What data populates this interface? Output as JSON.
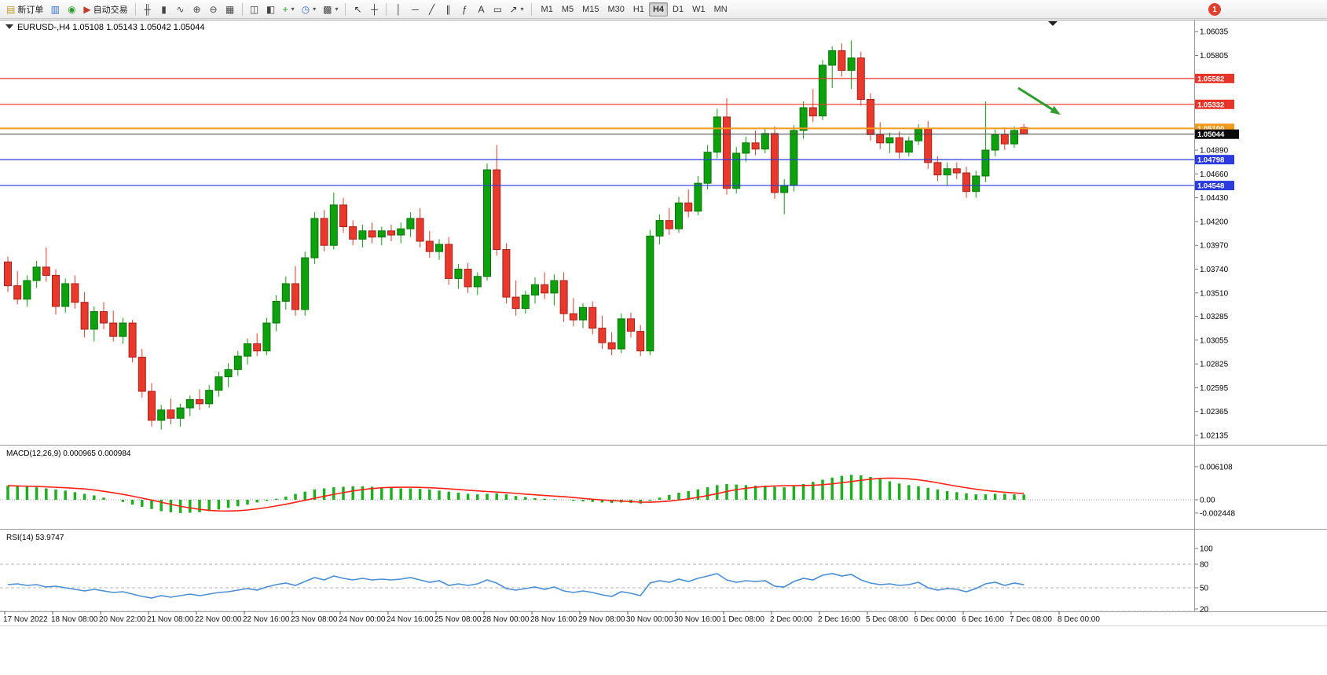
{
  "toolbar": {
    "items": [
      {
        "name": "new-order-button",
        "icon": "new-order-icon",
        "glyph": "▤",
        "color": "#c79b23",
        "label": "新订单"
      },
      {
        "name": "charts-button",
        "icon": "chart-window-icon",
        "glyph": "▥",
        "color": "#2f6fd0"
      },
      {
        "name": "news-button",
        "icon": "headset-icon",
        "glyph": "◉",
        "color": "#2f9e2f"
      },
      {
        "name": "autotrading-button",
        "icon": "autotrading-icon",
        "glyph": "▶",
        "color": "#c23a2e",
        "label": "自动交易"
      },
      {
        "sep": true
      },
      {
        "name": "bar-chart-type-button",
        "icon": "bar-chart-icon",
        "glyph": "╫",
        "color": "#444"
      },
      {
        "name": "candle-chart-type-button",
        "icon": "candlestick-icon",
        "glyph": "▮",
        "color": "#444"
      },
      {
        "name": "line-chart-type-button",
        "icon": "line-chart-icon",
        "glyph": "∿",
        "color": "#444"
      },
      {
        "name": "zoom-in-button",
        "icon": "zoom-in-icon",
        "glyph": "⊕",
        "color": "#444"
      },
      {
        "name": "zoom-out-button",
        "icon": "zoom-out-icon",
        "glyph": "⊖",
        "color": "#444"
      },
      {
        "name": "tile-windows-button",
        "icon": "tile-windows-icon",
        "glyph": "▦",
        "color": "#444"
      },
      {
        "sep": true
      },
      {
        "name": "data-window-button",
        "icon": "data-window-icon",
        "glyph": "◫",
        "color": "#444"
      },
      {
        "name": "navigator-button",
        "icon": "navigator-icon",
        "glyph": "◧",
        "color": "#444"
      },
      {
        "name": "indicators-button",
        "icon": "add-indicator-icon",
        "glyph": "+",
        "color": "#1f9e1f",
        "caret": true
      },
      {
        "name": "periods-button",
        "icon": "clock-icon",
        "glyph": "◷",
        "color": "#2f6fd0",
        "caret": true
      },
      {
        "name": "templates-button",
        "icon": "template-icon",
        "glyph": "▩",
        "color": "#444",
        "caret": true
      },
      {
        "sep": true
      },
      {
        "name": "cursor-button",
        "icon": "cursor-icon",
        "glyph": "↖",
        "color": "#333"
      },
      {
        "name": "crosshair-button",
        "icon": "crosshair-icon",
        "glyph": "┼",
        "color": "#333"
      },
      {
        "sep": true
      },
      {
        "name": "vertical-line-button",
        "icon": "vertical-line-icon",
        "glyph": "│",
        "color": "#333"
      },
      {
        "name": "horizontal-line-button",
        "icon": "horizontal-line-icon",
        "glyph": "─",
        "color": "#333"
      },
      {
        "name": "trendline-button",
        "icon": "trendline-icon",
        "glyph": "╱",
        "color": "#333"
      },
      {
        "name": "channel-button",
        "icon": "channel-icon",
        "glyph": "∥",
        "color": "#333"
      },
      {
        "name": "fibonacci-button",
        "icon": "fibonacci-icon",
        "glyph": "ƒ",
        "color": "#333"
      },
      {
        "name": "text-button",
        "icon": "text-icon",
        "glyph": "A",
        "color": "#333"
      },
      {
        "name": "label-button",
        "icon": "label-icon",
        "glyph": "▭",
        "color": "#333"
      },
      {
        "name": "arrows-button",
        "icon": "arrow-tool-icon",
        "glyph": "↗",
        "color": "#333",
        "caret": true
      },
      {
        "sep": true
      }
    ],
    "timeframes": [
      "M1",
      "M5",
      "M15",
      "M30",
      "H1",
      "H4",
      "D1",
      "W1",
      "MN"
    ],
    "active_timeframe": "H4",
    "notification_count": "1"
  },
  "chart": {
    "symbol_header": "EURUSD-,H4  1.05108 1.05143 1.05042 1.05044",
    "macd_header": "MACD(12,26,9) 0.000965 0.000984",
    "rsi_header": "RSI(14) 53.9747"
  },
  "chart_data": {
    "type": "candlestick",
    "symbol": "EURUSD-",
    "timeframe": "H4",
    "current_bar": {
      "open": 1.05108,
      "high": 1.05143,
      "low": 1.05042,
      "close": 1.05044
    },
    "price_axis_range": [
      1.02135,
      1.06035
    ],
    "style": {
      "up_color": "#0da10d",
      "up_border": "#077507",
      "down_color": "#e8392c",
      "down_border": "#a8221a",
      "macd_color": "#1fae1f",
      "signal_color": "#ff2015",
      "rsi_color": "#4a8fd4"
    },
    "candles": [
      [
        1.0381,
        1.0386,
        1.0352,
        1.0358
      ],
      [
        1.0358,
        1.0372,
        1.034,
        1.0345
      ],
      [
        1.0345,
        1.0368,
        1.0338,
        1.0363
      ],
      [
        1.0363,
        1.0382,
        1.0356,
        1.0376
      ],
      [
        1.0376,
        1.0395,
        1.0362,
        1.0368
      ],
      [
        1.0368,
        1.0374,
        1.033,
        1.0338
      ],
      [
        1.0338,
        1.0365,
        1.0332,
        1.036
      ],
      [
        1.036,
        1.0368,
        1.0336,
        1.0342
      ],
      [
        1.0342,
        1.0352,
        1.0308,
        1.0316
      ],
      [
        1.0316,
        1.0338,
        1.0304,
        1.0333
      ],
      [
        1.0333,
        1.0342,
        1.0316,
        1.0322
      ],
      [
        1.0322,
        1.0334,
        1.0304,
        1.0309
      ],
      [
        1.0309,
        1.0327,
        1.0302,
        1.0322
      ],
      [
        1.0322,
        1.0325,
        1.0284,
        1.0289
      ],
      [
        1.0289,
        1.0297,
        1.025,
        1.0256
      ],
      [
        1.0256,
        1.0264,
        1.0222,
        1.0228
      ],
      [
        1.0228,
        1.0243,
        1.0219,
        1.0238
      ],
      [
        1.0238,
        1.0249,
        1.0224,
        1.023
      ],
      [
        1.023,
        1.0244,
        1.0222,
        1.024
      ],
      [
        1.024,
        1.0252,
        1.0232,
        1.0248
      ],
      [
        1.0248,
        1.0258,
        1.0238,
        1.0244
      ],
      [
        1.0244,
        1.0262,
        1.024,
        1.0257
      ],
      [
        1.0257,
        1.0275,
        1.0251,
        1.027
      ],
      [
        1.027,
        1.0283,
        1.026,
        1.0277
      ],
      [
        1.0277,
        1.0295,
        1.0271,
        1.029
      ],
      [
        1.029,
        1.0307,
        1.0282,
        1.0302
      ],
      [
        1.0302,
        1.0312,
        1.029,
        1.0295
      ],
      [
        1.0295,
        1.0327,
        1.0291,
        1.0322
      ],
      [
        1.0322,
        1.0349,
        1.0314,
        1.0343
      ],
      [
        1.0343,
        1.0367,
        1.0335,
        1.036
      ],
      [
        1.036,
        1.0377,
        1.0329,
        1.0335
      ],
      [
        1.0335,
        1.0391,
        1.0329,
        1.0385
      ],
      [
        1.0385,
        1.0429,
        1.0379,
        1.0423
      ],
      [
        1.0423,
        1.0431,
        1.0391,
        1.0397
      ],
      [
        1.0397,
        1.0448,
        1.0393,
        1.0436
      ],
      [
        1.0436,
        1.0443,
        1.0409,
        1.0415
      ],
      [
        1.0415,
        1.0421,
        1.0397,
        1.0403
      ],
      [
        1.0403,
        1.0417,
        1.0395,
        1.0411
      ],
      [
        1.0411,
        1.0419,
        1.0399,
        1.0405
      ],
      [
        1.0405,
        1.0415,
        1.0397,
        1.0411
      ],
      [
        1.0411,
        1.0417,
        1.0401,
        1.0407
      ],
      [
        1.0407,
        1.0419,
        1.0399,
        1.0413
      ],
      [
        1.0413,
        1.0429,
        1.0405,
        1.0423
      ],
      [
        1.0423,
        1.0433,
        1.0395,
        1.0401
      ],
      [
        1.0401,
        1.0411,
        1.0385,
        1.0391
      ],
      [
        1.0391,
        1.0403,
        1.0383,
        1.0398
      ],
      [
        1.0398,
        1.0405,
        1.0359,
        1.0365
      ],
      [
        1.0365,
        1.0379,
        1.0355,
        1.0374
      ],
      [
        1.0374,
        1.038,
        1.0351,
        1.0357
      ],
      [
        1.0357,
        1.0371,
        1.0349,
        1.0367
      ],
      [
        1.0367,
        1.0476,
        1.0363,
        1.047
      ],
      [
        1.047,
        1.0494,
        1.0387,
        1.0393
      ],
      [
        1.0393,
        1.0399,
        1.0341,
        1.0347
      ],
      [
        1.0347,
        1.0363,
        1.0329,
        1.0336
      ],
      [
        1.0336,
        1.0353,
        1.0331,
        1.0349
      ],
      [
        1.0349,
        1.0366,
        1.0341,
        1.0359
      ],
      [
        1.0359,
        1.0371,
        1.0345,
        1.0351
      ],
      [
        1.0351,
        1.0369,
        1.0339,
        1.0363
      ],
      [
        1.0363,
        1.0371,
        1.0323,
        1.0331
      ],
      [
        1.0331,
        1.0346,
        1.0319,
        1.0325
      ],
      [
        1.0325,
        1.0341,
        1.0317,
        1.0337
      ],
      [
        1.0337,
        1.0343,
        1.0311,
        1.0317
      ],
      [
        1.0317,
        1.0329,
        1.0297,
        1.0303
      ],
      [
        1.0303,
        1.0313,
        1.0291,
        1.0297
      ],
      [
        1.0297,
        1.0331,
        1.0293,
        1.0326
      ],
      [
        1.0326,
        1.0332,
        1.0308,
        1.0314
      ],
      [
        1.0314,
        1.032,
        1.029,
        1.0295
      ],
      [
        1.0295,
        1.0412,
        1.0291,
        1.0406
      ],
      [
        1.0406,
        1.0427,
        1.0398,
        1.0421
      ],
      [
        1.0421,
        1.0433,
        1.0407,
        1.0413
      ],
      [
        1.0413,
        1.0444,
        1.0409,
        1.0438
      ],
      [
        1.0438,
        1.0451,
        1.0424,
        1.043
      ],
      [
        1.043,
        1.0464,
        1.0426,
        1.0457
      ],
      [
        1.0457,
        1.0494,
        1.0451,
        1.0487
      ],
      [
        1.0487,
        1.0529,
        1.0481,
        1.0521
      ],
      [
        1.0521,
        1.0539,
        1.0446,
        1.0452
      ],
      [
        1.0452,
        1.0492,
        1.0447,
        1.0486
      ],
      [
        1.0486,
        1.0502,
        1.0478,
        1.0496
      ],
      [
        1.0496,
        1.0508,
        1.0484,
        1.049
      ],
      [
        1.049,
        1.051,
        1.0486,
        1.0505
      ],
      [
        1.0505,
        1.0512,
        1.0442,
        1.0448
      ],
      [
        1.0448,
        1.0461,
        1.0427,
        1.0455
      ],
      [
        1.0455,
        1.0513,
        1.0449,
        1.0508
      ],
      [
        1.0508,
        1.0536,
        1.05,
        1.053
      ],
      [
        1.053,
        1.0548,
        1.0516,
        1.0522
      ],
      [
        1.0522,
        1.0576,
        1.0518,
        1.0571
      ],
      [
        1.0571,
        1.0589,
        1.0549,
        1.0585
      ],
      [
        1.0585,
        1.0592,
        1.056,
        1.0566
      ],
      [
        1.0566,
        1.0595,
        1.0548,
        1.0578
      ],
      [
        1.0578,
        1.0584,
        1.0532,
        1.0538
      ],
      [
        1.0538,
        1.0544,
        1.0498,
        1.0504
      ],
      [
        1.0504,
        1.0516,
        1.049,
        1.0496
      ],
      [
        1.0496,
        1.0506,
        1.0486,
        1.0501
      ],
      [
        1.0501,
        1.0507,
        1.0481,
        1.0487
      ],
      [
        1.0487,
        1.0502,
        1.0483,
        1.0498
      ],
      [
        1.0498,
        1.0514,
        1.0494,
        1.0509
      ],
      [
        1.0509,
        1.0517,
        1.0471,
        1.0477
      ],
      [
        1.0477,
        1.0483,
        1.0459,
        1.0465
      ],
      [
        1.0465,
        1.0477,
        1.0455,
        1.0471
      ],
      [
        1.0471,
        1.0477,
        1.0461,
        1.0467
      ],
      [
        1.0467,
        1.0473,
        1.0443,
        1.0449
      ],
      [
        1.0449,
        1.0469,
        1.0443,
        1.0464
      ],
      [
        1.0464,
        1.0536,
        1.0458,
        1.0489
      ],
      [
        1.0489,
        1.0509,
        1.0483,
        1.0504
      ],
      [
        1.0504,
        1.0511,
        1.0489,
        1.0495
      ],
      [
        1.0495,
        1.0512,
        1.0491,
        1.0508
      ],
      [
        1.05108,
        1.05143,
        1.05042,
        1.05044
      ]
    ],
    "hlines": [
      {
        "price": 1.05582,
        "label": "1.05582",
        "color": "#e8352a",
        "width": 1.2,
        "kind": "resistance"
      },
      {
        "price": 1.05332,
        "label": "1.05332",
        "color": "#e8352a",
        "width": 1.2,
        "kind": "resistance"
      },
      {
        "price": 1.051,
        "label": "1.05100",
        "color": "#f29a1e",
        "width": 2,
        "kind": "pivot"
      },
      {
        "price": 1.04798,
        "label": "1.04798",
        "color": "#2b3be0",
        "width": 1.2,
        "kind": "support"
      },
      {
        "price": 1.04548,
        "label": "1.04548",
        "color": "#2b3be0",
        "width": 1.2,
        "kind": "support"
      }
    ],
    "current_price": {
      "price": 1.05044,
      "label": "1.05044",
      "color": "#0a0a0a"
    },
    "price_axis_labels": [
      {
        "value": 1.06035,
        "text": "1.06035"
      },
      {
        "value": 1.05805,
        "text": "1.05805"
      },
      {
        "value": 1.0489,
        "text": "1.04890"
      },
      {
        "value": 1.0466,
        "text": "1.04660"
      },
      {
        "value": 1.0443,
        "text": "1.04430"
      },
      {
        "value": 1.042,
        "text": "1.04200"
      },
      {
        "value": 1.0397,
        "text": "1.03970"
      },
      {
        "value": 1.0374,
        "text": "1.03740"
      },
      {
        "value": 1.0351,
        "text": "1.03510"
      },
      {
        "value": 1.03285,
        "text": "1.03285"
      },
      {
        "value": 1.03055,
        "text": "1.03055"
      },
      {
        "value": 1.02825,
        "text": "1.02825"
      },
      {
        "value": 1.02595,
        "text": "1.02595"
      },
      {
        "value": 1.02365,
        "text": "1.02365"
      },
      {
        "value": 1.02135,
        "text": "1.02135"
      }
    ],
    "time_labels": [
      "17 Nov 2022",
      "18 Nov 08:00",
      "20 Nov 22:00",
      "21 Nov 08:00",
      "22 Nov 00:00",
      "22 Nov 16:00",
      "23 Nov 08:00",
      "24 Nov 00:00",
      "24 Nov 16:00",
      "25 Nov 08:00",
      "28 Nov 00:00",
      "28 Nov 16:00",
      "29 Nov 08:00",
      "30 Nov 00:00",
      "30 Nov 16:00",
      "1 Dec 08:00",
      "2 Dec 00:00",
      "2 Dec 16:00",
      "5 Dec 08:00",
      "6 Dec 00:00",
      "6 Dec 16:00",
      "7 Dec 08:00",
      "8 Dec 00:00"
    ],
    "macd": {
      "label": "MACD(12,26,9)",
      "value": "0.000965",
      "signal_value": "0.000984",
      "scale": [
        {
          "value": 0.006108,
          "text": "0.006108"
        },
        {
          "value": 0,
          "text": "0.00"
        },
        {
          "value": -0.002448,
          "text": "-0.002448"
        }
      ],
      "histogram": [
        0.0026,
        0.0025,
        0.0024,
        0.0023,
        0.0021,
        0.0019,
        0.0017,
        0.0014,
        0.0011,
        0.0008,
        0.0004,
        0.0,
        -0.0004,
        -0.0009,
        -0.0013,
        -0.0017,
        -0.0021,
        -0.0023,
        -0.00245,
        -0.0024,
        -0.0023,
        -0.0021,
        -0.0018,
        -0.0015,
        -0.0012,
        -0.0009,
        -0.0005,
        -0.0002,
        0.0002,
        0.0006,
        0.0011,
        0.0015,
        0.0019,
        0.0021,
        0.0023,
        0.0024,
        0.0025,
        0.0025,
        0.0024,
        0.0023,
        0.0022,
        0.0021,
        0.0021,
        0.002,
        0.0019,
        0.0017,
        0.0015,
        0.0013,
        0.0011,
        0.001,
        0.0011,
        0.0012,
        0.001,
        0.0007,
        0.0005,
        0.0003,
        0.0002,
        0.0001,
        0.0,
        -0.0002,
        -0.0003,
        -0.0004,
        -0.0005,
        -0.0006,
        -0.0005,
        -0.0006,
        -0.0007,
        -0.0002,
        0.0004,
        0.0009,
        0.0013,
        0.0016,
        0.0019,
        0.0023,
        0.0027,
        0.0029,
        0.0028,
        0.0027,
        0.0026,
        0.0026,
        0.0024,
        0.0023,
        0.0025,
        0.0029,
        0.0033,
        0.0037,
        0.0041,
        0.0044,
        0.0046,
        0.0045,
        0.0042,
        0.0038,
        0.0034,
        0.003,
        0.0027,
        0.0025,
        0.0022,
        0.0019,
        0.0016,
        0.0014,
        0.0012,
        0.001,
        0.001,
        0.0011,
        0.0011,
        0.001,
        0.000965
      ]
    },
    "rsi": {
      "label": "RSI(14)",
      "value": "53.9747",
      "levels": [
        80,
        50,
        20
      ],
      "scale_labels": [
        {
          "value": 100,
          "text": "100"
        },
        {
          "value": 80,
          "text": "80"
        },
        {
          "value": 50,
          "text": "50"
        },
        {
          "value": 20,
          "text": "20"
        }
      ],
      "values": [
        54,
        55,
        53,
        54,
        51,
        52,
        50,
        48,
        46,
        48,
        46,
        44,
        45,
        42,
        39,
        37,
        40,
        38,
        40,
        42,
        40,
        42,
        44,
        45,
        47,
        49,
        47,
        51,
        54,
        56,
        53,
        58,
        63,
        60,
        65,
        62,
        60,
        62,
        60,
        61,
        60,
        61,
        63,
        60,
        57,
        59,
        53,
        55,
        53,
        55,
        60,
        56,
        49,
        47,
        49,
        51,
        48,
        51,
        46,
        44,
        46,
        44,
        41,
        39,
        45,
        43,
        40,
        56,
        59,
        57,
        61,
        58,
        62,
        65,
        68,
        60,
        57,
        59,
        58,
        59,
        52,
        51,
        58,
        62,
        60,
        66,
        68,
        65,
        67,
        60,
        56,
        54,
        55,
        53,
        54,
        57,
        50,
        47,
        49,
        48,
        45,
        49,
        55,
        57,
        53,
        56,
        53.97
      ]
    },
    "annotations": [
      {
        "type": "arrow",
        "from": [
          1296,
          112
        ],
        "to": [
          1350,
          146
        ],
        "color": "#2f9e2f",
        "width": 3,
        "meaning": "sell-pressure-arrow"
      }
    ]
  }
}
